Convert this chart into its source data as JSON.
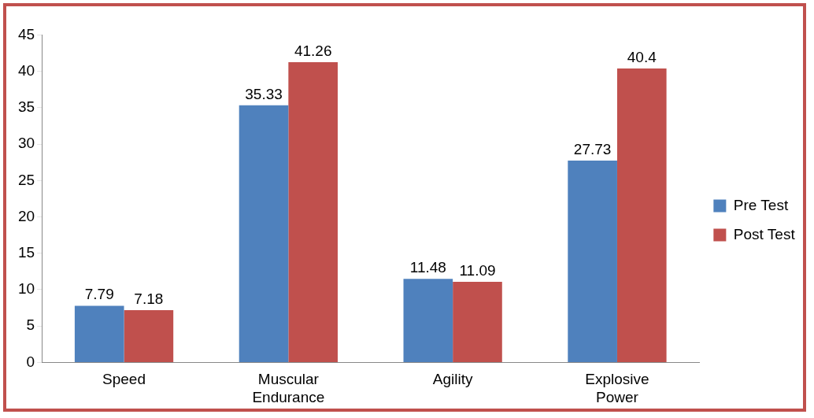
{
  "chart_data": {
    "type": "bar",
    "categories": [
      "Speed",
      "Muscular Endurance",
      "Agility",
      "Explosive Power"
    ],
    "series": [
      {
        "name": "Pre Test",
        "color": "#4f81bd",
        "values": [
          7.79,
          35.33,
          11.48,
          27.73
        ]
      },
      {
        "name": "Post Test",
        "color": "#c0504d",
        "values": [
          7.18,
          41.26,
          11.09,
          40.4
        ]
      }
    ],
    "ylim": [
      0,
      45
    ],
    "yticks": [
      0,
      5,
      10,
      15,
      20,
      25,
      30,
      35,
      40,
      45
    ],
    "grid": false,
    "legend": "right",
    "data_labels": true
  }
}
